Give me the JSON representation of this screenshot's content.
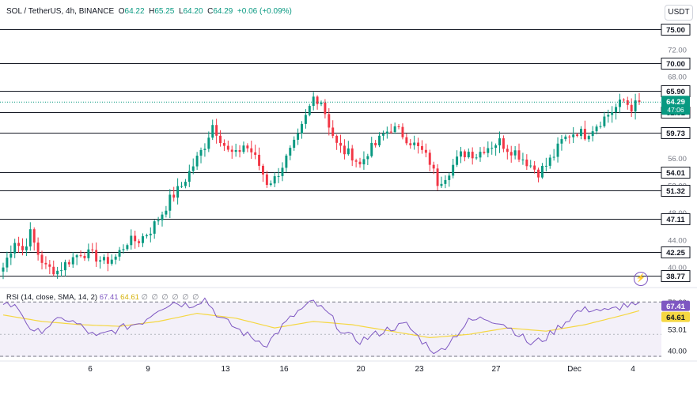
{
  "header": {
    "symbol": "SOL / TetherUS, 4h, BINANCE",
    "open_label": "O",
    "open": "64.22",
    "high_label": "H",
    "high": "65.25",
    "low_label": "L",
    "low": "64.20",
    "close_label": "C",
    "close": "64.29",
    "change": "+0.06 (+0.09%)"
  },
  "currency_button": "USDT",
  "countdown": "47:06",
  "rsi_legend": {
    "label": "RSI (14, close, SMA, 14, 2)",
    "rsi_value": "67.41",
    "sma_value": "64.61",
    "empty": "∅ ∅ ∅ ∅ ∅ ∅"
  },
  "colors": {
    "up": "#089981",
    "down": "#f23645",
    "rsi": "#7e57c2",
    "rsi_sma": "#f5d742",
    "band": "#7e57c2"
  },
  "chart_data": [
    {
      "type": "candlestick",
      "x_ticks": [
        "6",
        "9",
        "13",
        "16",
        "20",
        "23",
        "27",
        "Dec",
        "4"
      ],
      "y_ticks": [
        40.0,
        44.0,
        48.0,
        52.0,
        56.0,
        60.0,
        64.0,
        68.0,
        72.0
      ],
      "ylim": [
        37.5,
        76.5
      ],
      "levels": [
        75.0,
        70.0,
        65.9,
        62.81,
        59.73,
        54.01,
        51.32,
        47.11,
        42.25,
        38.77
      ],
      "level_labels": [
        "75.00",
        "70.00",
        "65.90",
        "62.81",
        "59.73",
        "54.01",
        "51.32",
        "47.11",
        "42.25",
        "38.77"
      ],
      "last_price": "64.29",
      "close_path": [
        [
          0,
          40.0
        ],
        [
          3,
          44.0
        ],
        [
          5,
          42.5
        ],
        [
          7,
          45.0
        ],
        [
          9,
          42.0
        ],
        [
          11,
          40.0
        ],
        [
          14,
          39.5
        ],
        [
          17,
          41.0
        ],
        [
          20,
          42.2
        ],
        [
          23,
          41.8
        ],
        [
          26,
          40.8
        ],
        [
          29,
          41.5
        ],
        [
          32,
          43.8
        ],
        [
          35,
          44.0
        ],
        [
          38,
          45.5
        ],
        [
          41,
          48.0
        ],
        [
          43,
          50.0
        ],
        [
          46,
          52.0
        ],
        [
          49,
          55.0
        ],
        [
          52,
          58.0
        ],
        [
          54,
          61.0
        ],
        [
          56,
          59.0
        ],
        [
          58,
          57.0
        ],
        [
          60,
          56.5
        ],
        [
          62,
          58.0
        ],
        [
          64,
          57.0
        ],
        [
          66,
          55.0
        ],
        [
          68,
          52.5
        ],
        [
          70,
          53.0
        ],
        [
          72,
          55.0
        ],
        [
          74,
          57.0
        ],
        [
          76,
          59.0
        ],
        [
          78,
          62.0
        ],
        [
          80,
          65.0
        ],
        [
          82,
          64.5
        ],
        [
          84,
          61.0
        ],
        [
          86,
          58.0
        ],
        [
          88,
          57.0
        ],
        [
          90,
          56.5
        ],
        [
          92,
          55.0
        ],
        [
          94,
          57.0
        ],
        [
          96,
          58.0
        ],
        [
          98,
          59.5
        ],
        [
          100,
          60.5
        ],
        [
          102,
          60.0
        ],
        [
          104,
          59.0
        ],
        [
          106,
          58.0
        ],
        [
          108,
          57.0
        ],
        [
          110,
          55.5
        ],
        [
          112,
          52.5
        ],
        [
          114,
          53.5
        ],
        [
          116,
          55.0
        ],
        [
          118,
          56.5
        ],
        [
          120,
          57.0
        ],
        [
          122,
          56.5
        ],
        [
          124,
          57.5
        ],
        [
          126,
          58.0
        ],
        [
          128,
          58.5
        ],
        [
          130,
          57.5
        ],
        [
          132,
          57.0
        ],
        [
          134,
          56.0
        ],
        [
          136,
          55.0
        ],
        [
          138,
          54.0
        ],
        [
          140,
          55.0
        ],
        [
          142,
          56.5
        ],
        [
          144,
          58.5
        ],
        [
          146,
          59.5
        ],
        [
          148,
          60.0
        ],
        [
          150,
          59.5
        ],
        [
          152,
          60.5
        ],
        [
          154,
          61.5
        ],
        [
          156,
          62.5
        ],
        [
          158,
          63.5
        ],
        [
          160,
          64.5
        ],
        [
          162,
          63.5
        ],
        [
          164,
          64.29
        ]
      ],
      "candle_count": 165
    },
    {
      "type": "line",
      "name": "RSI",
      "y_ticks": [
        40.0,
        53.01,
        70.0
      ],
      "ylim": [
        36,
        76
      ],
      "band": [
        30,
        70
      ],
      "current": "67.41",
      "sma_current": "64.61",
      "rsi_path": [
        [
          0,
          70
        ],
        [
          4,
          66
        ],
        [
          8,
          50
        ],
        [
          12,
          56
        ],
        [
          16,
          60
        ],
        [
          20,
          55
        ],
        [
          24,
          48
        ],
        [
          28,
          52
        ],
        [
          32,
          55
        ],
        [
          36,
          58
        ],
        [
          40,
          66
        ],
        [
          44,
          70
        ],
        [
          48,
          68
        ],
        [
          52,
          72
        ],
        [
          56,
          60
        ],
        [
          60,
          54
        ],
        [
          64,
          48
        ],
        [
          68,
          44
        ],
        [
          72,
          55
        ],
        [
          76,
          64
        ],
        [
          80,
          70
        ],
        [
          84,
          62
        ],
        [
          88,
          50
        ],
        [
          92,
          46
        ],
        [
          96,
          50
        ],
        [
          100,
          54
        ],
        [
          104,
          56
        ],
        [
          108,
          46
        ],
        [
          112,
          38
        ],
        [
          116,
          48
        ],
        [
          120,
          58
        ],
        [
          124,
          60
        ],
        [
          128,
          58
        ],
        [
          132,
          52
        ],
        [
          136,
          44
        ],
        [
          140,
          48
        ],
        [
          144,
          56
        ],
        [
          148,
          64
        ],
        [
          152,
          66
        ],
        [
          156,
          64
        ],
        [
          160,
          68
        ],
        [
          164,
          67.41
        ]
      ],
      "sma_path": [
        [
          0,
          62
        ],
        [
          10,
          58
        ],
        [
          20,
          56
        ],
        [
          30,
          55
        ],
        [
          40,
          58
        ],
        [
          50,
          63
        ],
        [
          60,
          60
        ],
        [
          70,
          54
        ],
        [
          80,
          58
        ],
        [
          90,
          56
        ],
        [
          100,
          52
        ],
        [
          110,
          48
        ],
        [
          120,
          50
        ],
        [
          130,
          54
        ],
        [
          140,
          52
        ],
        [
          150,
          56
        ],
        [
          160,
          62
        ],
        [
          164,
          64.61
        ]
      ]
    }
  ]
}
